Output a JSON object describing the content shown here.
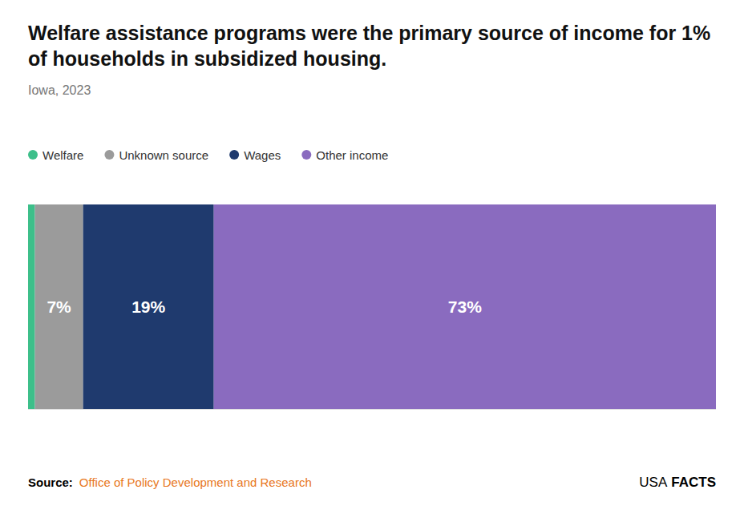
{
  "chart_data": {
    "type": "bar",
    "orientation": "horizontal",
    "stacked": true,
    "title": "Welfare assistance programs were the primary source of income for 1% of households in subsidized housing.",
    "subtitle": "Iowa, 2023",
    "categories": [
      null
    ],
    "series": [
      {
        "name": "Welfare",
        "color": "#3dbf8a",
        "values": [
          1
        ]
      },
      {
        "name": "Unknown source",
        "color": "#9b9b9b",
        "values": [
          7
        ],
        "value_labels": [
          "7%"
        ]
      },
      {
        "name": "Wages",
        "color": "#1f3a6e",
        "values": [
          19
        ],
        "value_labels": [
          "19%"
        ]
      },
      {
        "name": "Other income",
        "color": "#8a6bbf",
        "values": [
          73
        ],
        "value_labels": [
          "73%"
        ]
      }
    ],
    "xlim": [
      0,
      100
    ],
    "data_labels": true,
    "tick_labels": false,
    "grid": false,
    "legend": "top",
    "source_label": "Source:",
    "source": "Office of Policy Development and Research",
    "brand": [
      "USA",
      "FACTS"
    ]
  }
}
